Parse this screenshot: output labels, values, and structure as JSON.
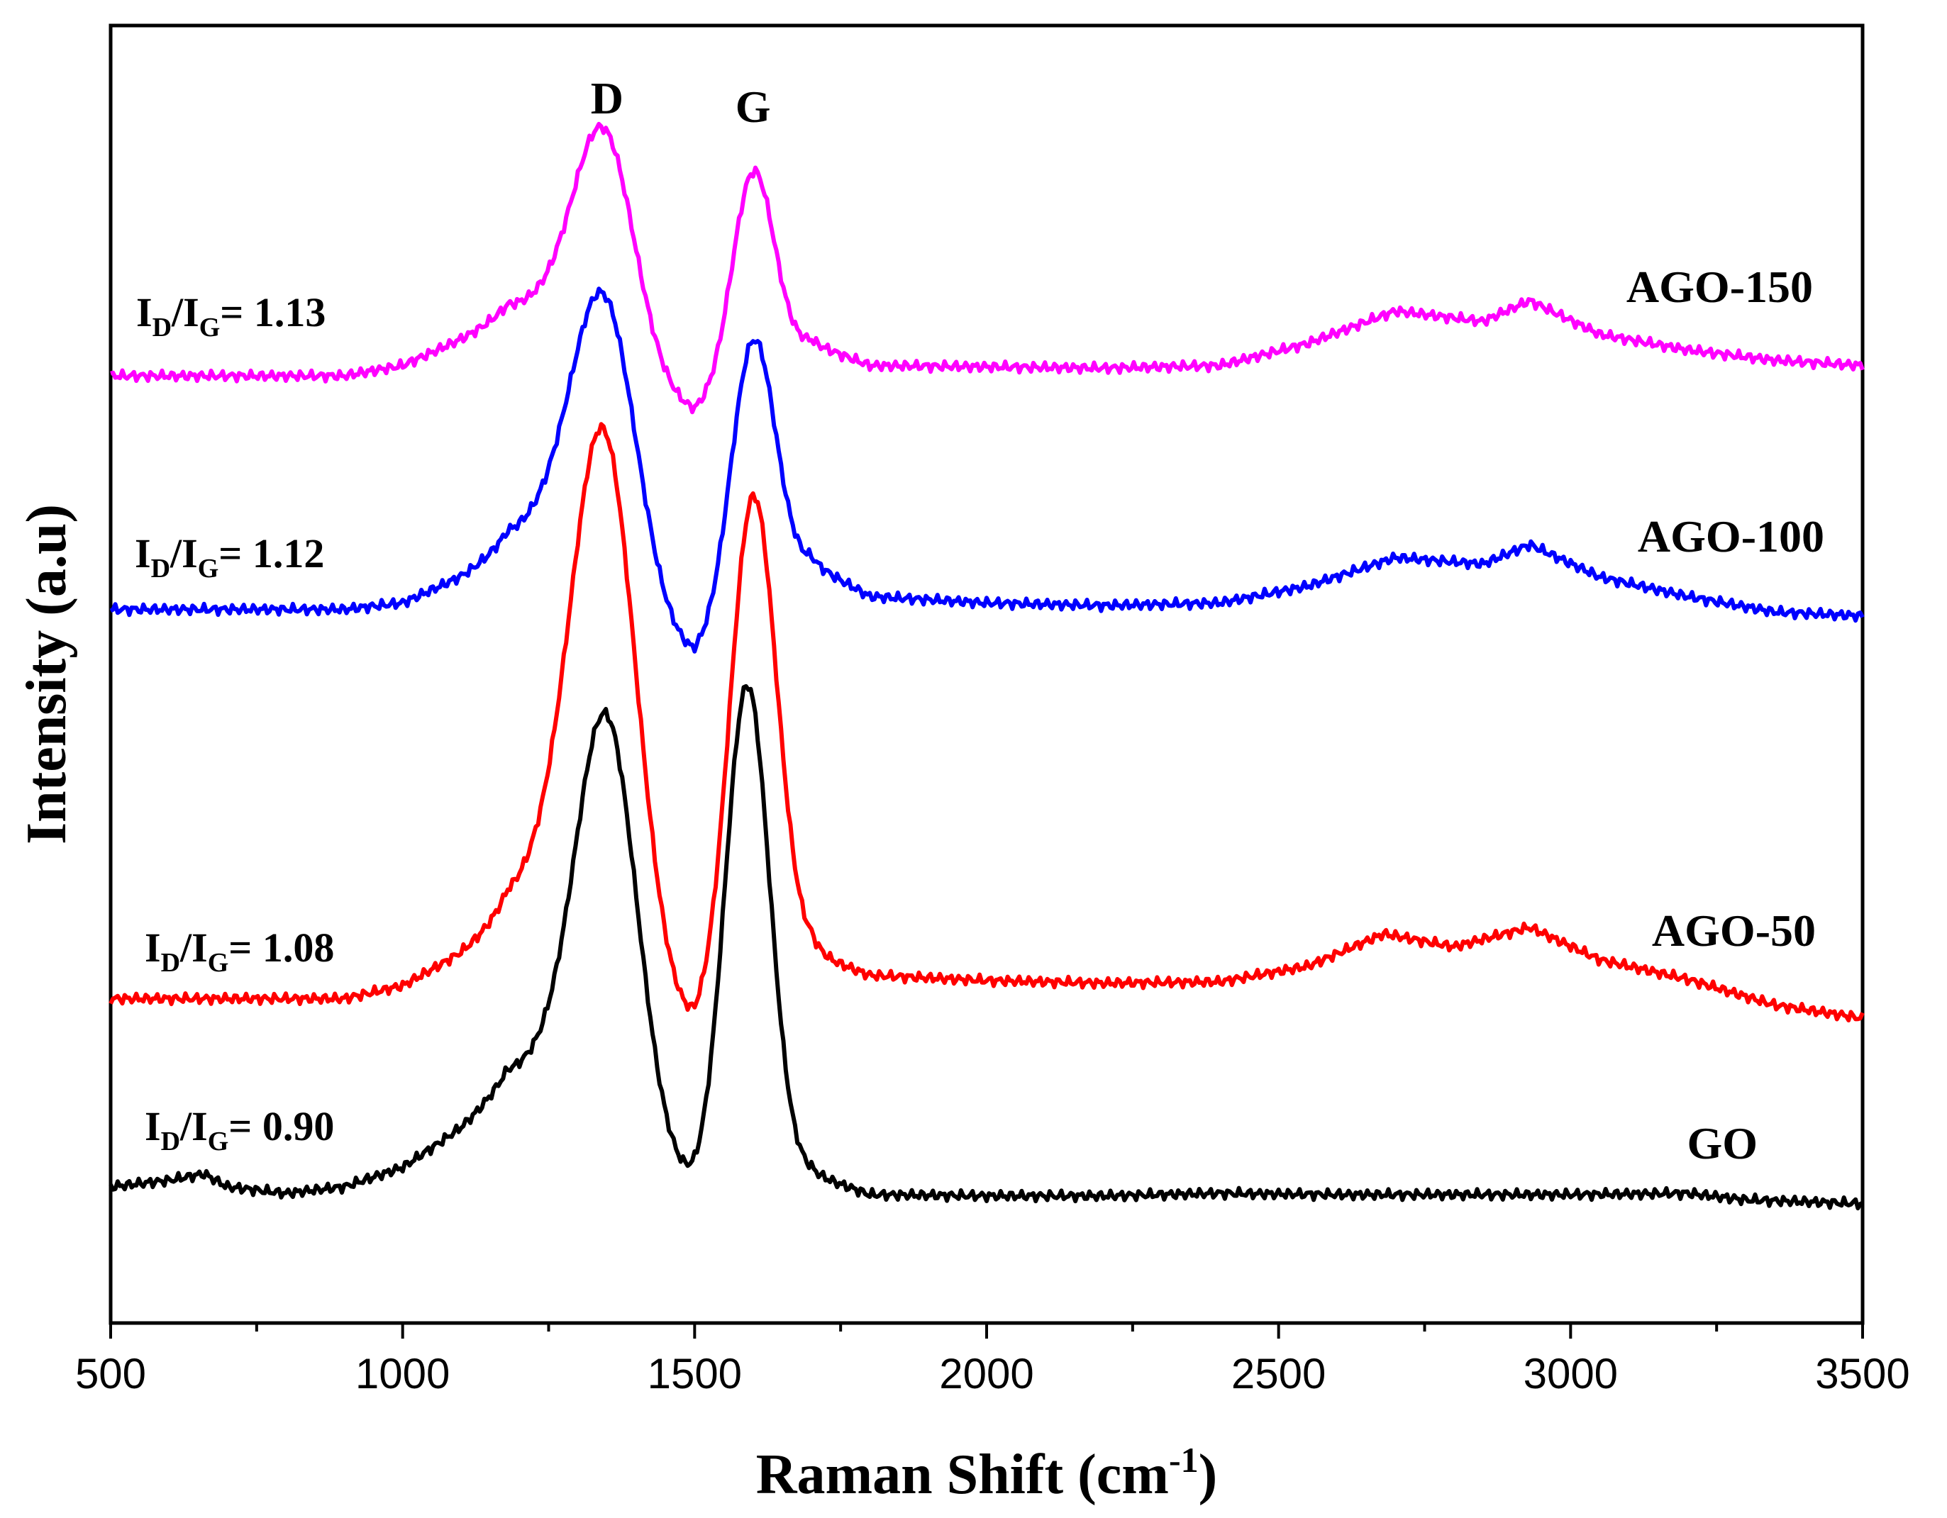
{
  "chart_data": {
    "type": "line",
    "title": "",
    "xlabel": "Raman Shift (cm-1)",
    "xlabel_main": "Raman Shift (cm",
    "xlabel_sup": "-1",
    "xlabel_close": ")",
    "ylabel": "Intensity (a.u)",
    "xlim": [
      500,
      3500
    ],
    "ylim": [
      0,
      10
    ],
    "x_ticks": [
      500,
      1000,
      1500,
      2000,
      2500,
      3000,
      3500
    ],
    "x_tick_labels": [
      "500",
      "1000",
      "1500",
      "2000",
      "2500",
      "3000",
      "3500"
    ],
    "y_ticks_shown": false,
    "grid": false,
    "peak_labels": [
      {
        "text": "D",
        "x": 1350
      },
      {
        "text": "G",
        "x": 1600
      }
    ],
    "series": [
      {
        "name": "GO",
        "color": "#000000",
        "ratio": {
          "I": "I",
          "D": "D",
          "slash": "/",
          "G": "G",
          "eq": "= 0.90"
        },
        "baseline": [
          [
            500,
            1.05
          ],
          [
            600,
            1.1
          ],
          [
            660,
            1.15
          ],
          [
            700,
            1.05
          ],
          [
            800,
            1.0
          ],
          [
            900,
            1.05
          ],
          [
            1000,
            1.2
          ],
          [
            1100,
            1.5
          ],
          [
            1180,
            1.8
          ],
          [
            1500,
            1.0
          ],
          [
            1700,
            1.15
          ],
          [
            1800,
            0.99
          ],
          [
            2000,
            0.98
          ],
          [
            2200,
            0.98
          ],
          [
            2400,
            1.0
          ],
          [
            2600,
            0.99
          ],
          [
            2800,
            0.99
          ],
          [
            3000,
            0.99
          ],
          [
            3200,
            1.0
          ],
          [
            3300,
            0.95
          ],
          [
            3500,
            0.92
          ]
        ],
        "peaks": [
          {
            "x0": 1350,
            "amp": 3.2,
            "w": 52
          },
          {
            "x0": 1590,
            "amp": 3.85,
            "w": 38
          },
          {
            "x0": 1260,
            "amp": 0.35,
            "w": 60
          }
        ]
      },
      {
        "name": "AGO-50",
        "color": "#ff0000",
        "ratio": {
          "I": "I",
          "D": "D",
          "slash": "/",
          "G": "G",
          "eq": "= 1.08"
        },
        "baseline": [
          [
            500,
            2.5
          ],
          [
            700,
            2.5
          ],
          [
            900,
            2.5
          ],
          [
            1000,
            2.6
          ],
          [
            1100,
            2.85
          ],
          [
            1180,
            3.1
          ],
          [
            1500,
            2.2
          ],
          [
            1700,
            2.85
          ],
          [
            1800,
            2.68
          ],
          [
            2000,
            2.64
          ],
          [
            2200,
            2.62
          ],
          [
            2400,
            2.63
          ],
          [
            2550,
            2.75
          ],
          [
            2680,
            3.0
          ],
          [
            2800,
            2.9
          ],
          [
            2930,
            3.05
          ],
          [
            3050,
            2.8
          ],
          [
            3200,
            2.65
          ],
          [
            3350,
            2.45
          ],
          [
            3500,
            2.35
          ]
        ],
        "peaks": [
          {
            "x0": 1345,
            "amp": 4.15,
            "w": 55
          },
          {
            "x0": 1600,
            "amp": 3.85,
            "w": 40
          },
          {
            "x0": 1250,
            "amp": 0.45,
            "w": 55
          }
        ]
      },
      {
        "name": "AGO-100",
        "color": "#0000ff",
        "ratio": {
          "I": "I",
          "D": "D",
          "slash": "/",
          "G": "G",
          "eq": "= 1.12"
        },
        "baseline": [
          [
            500,
            5.5
          ],
          [
            700,
            5.5
          ],
          [
            900,
            5.5
          ],
          [
            1000,
            5.55
          ],
          [
            1100,
            5.75
          ],
          [
            1180,
            5.95
          ],
          [
            1500,
            5.1
          ],
          [
            1700,
            5.85
          ],
          [
            1800,
            5.6
          ],
          [
            2000,
            5.55
          ],
          [
            2200,
            5.53
          ],
          [
            2400,
            5.55
          ],
          [
            2550,
            5.68
          ],
          [
            2700,
            5.9
          ],
          [
            2850,
            5.85
          ],
          [
            2930,
            6.0
          ],
          [
            3050,
            5.75
          ],
          [
            3200,
            5.6
          ],
          [
            3350,
            5.48
          ],
          [
            3500,
            5.45
          ]
        ],
        "peaks": [
          {
            "x0": 1345,
            "amp": 2.35,
            "w": 55
          },
          {
            "x0": 1600,
            "amp": 2.1,
            "w": 38
          },
          {
            "x0": 1250,
            "amp": 0.3,
            "w": 55
          }
        ]
      },
      {
        "name": "AGO-150",
        "color": "#ff00ff",
        "ratio": {
          "I": "I",
          "D": "D",
          "slash": "/",
          "G": "G",
          "eq": "= 1.13"
        },
        "baseline": [
          [
            500,
            7.3
          ],
          [
            700,
            7.3
          ],
          [
            900,
            7.3
          ],
          [
            1000,
            7.38
          ],
          [
            1100,
            7.58
          ],
          [
            1180,
            7.75
          ],
          [
            1500,
            7.0
          ],
          [
            1700,
            7.55
          ],
          [
            1800,
            7.38
          ],
          [
            2000,
            7.37
          ],
          [
            2200,
            7.36
          ],
          [
            2400,
            7.38
          ],
          [
            2550,
            7.55
          ],
          [
            2700,
            7.8
          ],
          [
            2850,
            7.72
          ],
          [
            2930,
            7.88
          ],
          [
            3050,
            7.62
          ],
          [
            3200,
            7.5
          ],
          [
            3350,
            7.42
          ],
          [
            3500,
            7.38
          ]
        ],
        "peaks": [
          {
            "x0": 1345,
            "amp": 1.8,
            "w": 52
          },
          {
            "x0": 1600,
            "amp": 1.6,
            "w": 36
          },
          {
            "x0": 1250,
            "amp": 0.2,
            "w": 55
          }
        ]
      }
    ]
  }
}
